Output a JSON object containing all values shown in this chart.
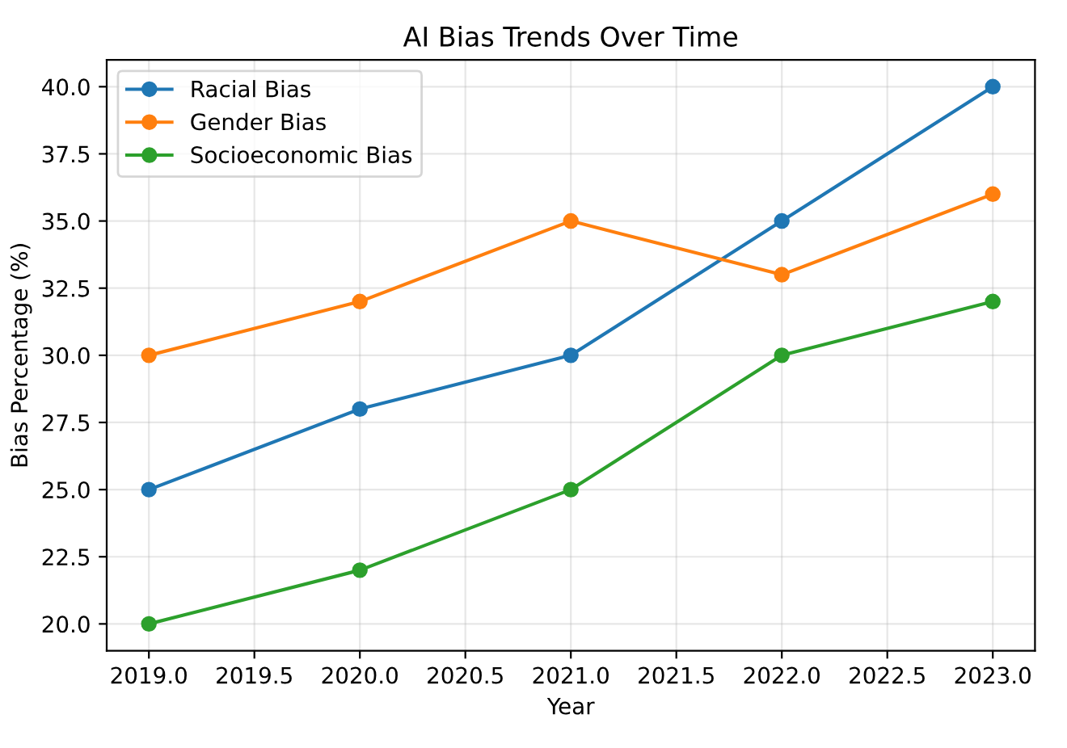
{
  "chart_data": {
    "type": "line",
    "title": "AI Bias Trends Over Time",
    "xlabel": "Year",
    "ylabel": "Bias Percentage (%)",
    "x": [
      2019,
      2020,
      2021,
      2022,
      2023
    ],
    "series": [
      {
        "name": "Racial Bias",
        "color": "#1f77b4",
        "values": [
          25,
          28,
          30,
          35,
          40
        ]
      },
      {
        "name": "Gender Bias",
        "color": "#ff7f0e",
        "values": [
          30,
          32,
          35,
          33,
          36
        ]
      },
      {
        "name": "Socioeconomic Bias",
        "color": "#2ca02c",
        "values": [
          20,
          22,
          25,
          30,
          32
        ]
      }
    ],
    "xlim": [
      2018.8,
      2023.2
    ],
    "xticks": [
      {
        "value": 2019,
        "label": "2019.0"
      },
      {
        "value": 2019.5,
        "label": "2019.5"
      },
      {
        "value": 2020,
        "label": "2020.0"
      },
      {
        "value": 2020.5,
        "label": "2020.5"
      },
      {
        "value": 2021,
        "label": "2021.0"
      },
      {
        "value": 2021.5,
        "label": "2021.5"
      },
      {
        "value": 2022,
        "label": "2022.0"
      },
      {
        "value": 2022.5,
        "label": "2022.5"
      },
      {
        "value": 2023,
        "label": "2023.0"
      }
    ],
    "ylim": [
      19,
      41
    ],
    "yticks": [
      {
        "value": 20,
        "label": "20.0"
      },
      {
        "value": 22.5,
        "label": "22.5"
      },
      {
        "value": 25,
        "label": "25.0"
      },
      {
        "value": 27.5,
        "label": "27.5"
      },
      {
        "value": 30,
        "label": "30.0"
      },
      {
        "value": 32.5,
        "label": "32.5"
      },
      {
        "value": 35,
        "label": "35.0"
      },
      {
        "value": 37.5,
        "label": "37.5"
      },
      {
        "value": 40,
        "label": "40.0"
      }
    ],
    "grid": true,
    "legend": "top left",
    "marker": "circle",
    "line_style": "solid"
  }
}
